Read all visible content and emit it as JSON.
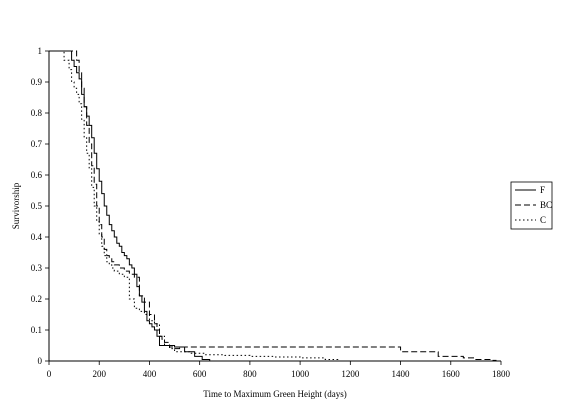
{
  "chart_data": {
    "type": "line",
    "title": "",
    "xlabel": "Time to Maximum Green Height (days)",
    "ylabel": "Survivorship",
    "xlim": [
      0,
      1800
    ],
    "ylim": [
      0,
      1
    ],
    "xticks": [
      "0",
      "200",
      "400",
      "600",
      "800",
      "1000",
      "1200",
      "1400",
      "1600",
      "1800"
    ],
    "xtick_values": [
      0,
      200,
      400,
      600,
      800,
      1000,
      1200,
      1400,
      1600,
      1800
    ],
    "yticks": [
      "0",
      "0.1",
      "0.2",
      "0.3",
      "0.4",
      "0.5",
      "0.6",
      "0.7",
      "0.8",
      "0.9",
      "1"
    ],
    "ytick_values": [
      0,
      0.1,
      0.2,
      0.3,
      0.4,
      0.5,
      0.6,
      0.7,
      0.8,
      0.9,
      1
    ],
    "grid": false,
    "legend_position": "right",
    "series": [
      {
        "name": "F",
        "style": "solid",
        "color": "#000000",
        "x": [
          0,
          70,
          90,
          100,
          110,
          120,
          130,
          140,
          150,
          160,
          170,
          180,
          190,
          200,
          210,
          220,
          230,
          240,
          250,
          260,
          270,
          280,
          290,
          300,
          310,
          320,
          330,
          340,
          350,
          360,
          370,
          380,
          390,
          400,
          410,
          420,
          430,
          440,
          450,
          500,
          540,
          580,
          610,
          640
        ],
        "y": [
          1,
          1,
          0.97,
          0.95,
          0.93,
          0.91,
          0.86,
          0.82,
          0.79,
          0.76,
          0.72,
          0.67,
          0.62,
          0.58,
          0.54,
          0.5,
          0.47,
          0.44,
          0.42,
          0.4,
          0.38,
          0.37,
          0.35,
          0.34,
          0.33,
          0.31,
          0.3,
          0.28,
          0.24,
          0.21,
          0.19,
          0.16,
          0.13,
          0.12,
          0.11,
          0.1,
          0.08,
          0.05,
          0.05,
          0.045,
          0.03,
          0.015,
          0.005,
          0
        ]
      },
      {
        "name": "BC",
        "style": "dashed",
        "color": "#000000",
        "x": [
          0,
          100,
          110,
          120,
          130,
          140,
          150,
          160,
          170,
          180,
          190,
          200,
          210,
          220,
          230,
          240,
          250,
          260,
          280,
          300,
          320,
          340,
          360,
          380,
          400,
          420,
          430,
          440,
          450,
          460,
          480,
          500,
          520,
          540,
          880,
          1120,
          1250,
          1400,
          1550,
          1650,
          1700,
          1760,
          1780
        ],
        "y": [
          1,
          1,
          0.97,
          0.93,
          0.88,
          0.82,
          0.76,
          0.7,
          0.63,
          0.57,
          0.5,
          0.44,
          0.4,
          0.36,
          0.34,
          0.33,
          0.32,
          0.31,
          0.3,
          0.29,
          0.28,
          0.27,
          0.21,
          0.19,
          0.15,
          0.12,
          0.1,
          0.08,
          0.07,
          0.06,
          0.045,
          0.04,
          0.045,
          0.045,
          0.045,
          0.045,
          0.045,
          0.03,
          0.015,
          0.01,
          0.005,
          0.002,
          0
        ]
      },
      {
        "name": "C",
        "style": "dotted",
        "color": "#000000",
        "x": [
          0,
          60,
          80,
          90,
          100,
          110,
          120,
          130,
          140,
          150,
          160,
          170,
          180,
          190,
          200,
          210,
          220,
          230,
          240,
          250,
          260,
          280,
          300,
          320,
          340,
          360,
          380,
          400,
          420,
          440,
          460,
          480,
          500,
          560,
          620,
          700,
          800,
          900,
          1000,
          1100,
          1150
        ],
        "y": [
          1,
          0.97,
          0.94,
          0.9,
          0.88,
          0.86,
          0.83,
          0.78,
          0.72,
          0.67,
          0.62,
          0.56,
          0.5,
          0.45,
          0.41,
          0.37,
          0.34,
          0.32,
          0.31,
          0.3,
          0.29,
          0.28,
          0.27,
          0.2,
          0.17,
          0.16,
          0.15,
          0.13,
          0.12,
          0.08,
          0.05,
          0.04,
          0.03,
          0.025,
          0.02,
          0.018,
          0.015,
          0.013,
          0.01,
          0.005,
          0
        ]
      }
    ]
  }
}
